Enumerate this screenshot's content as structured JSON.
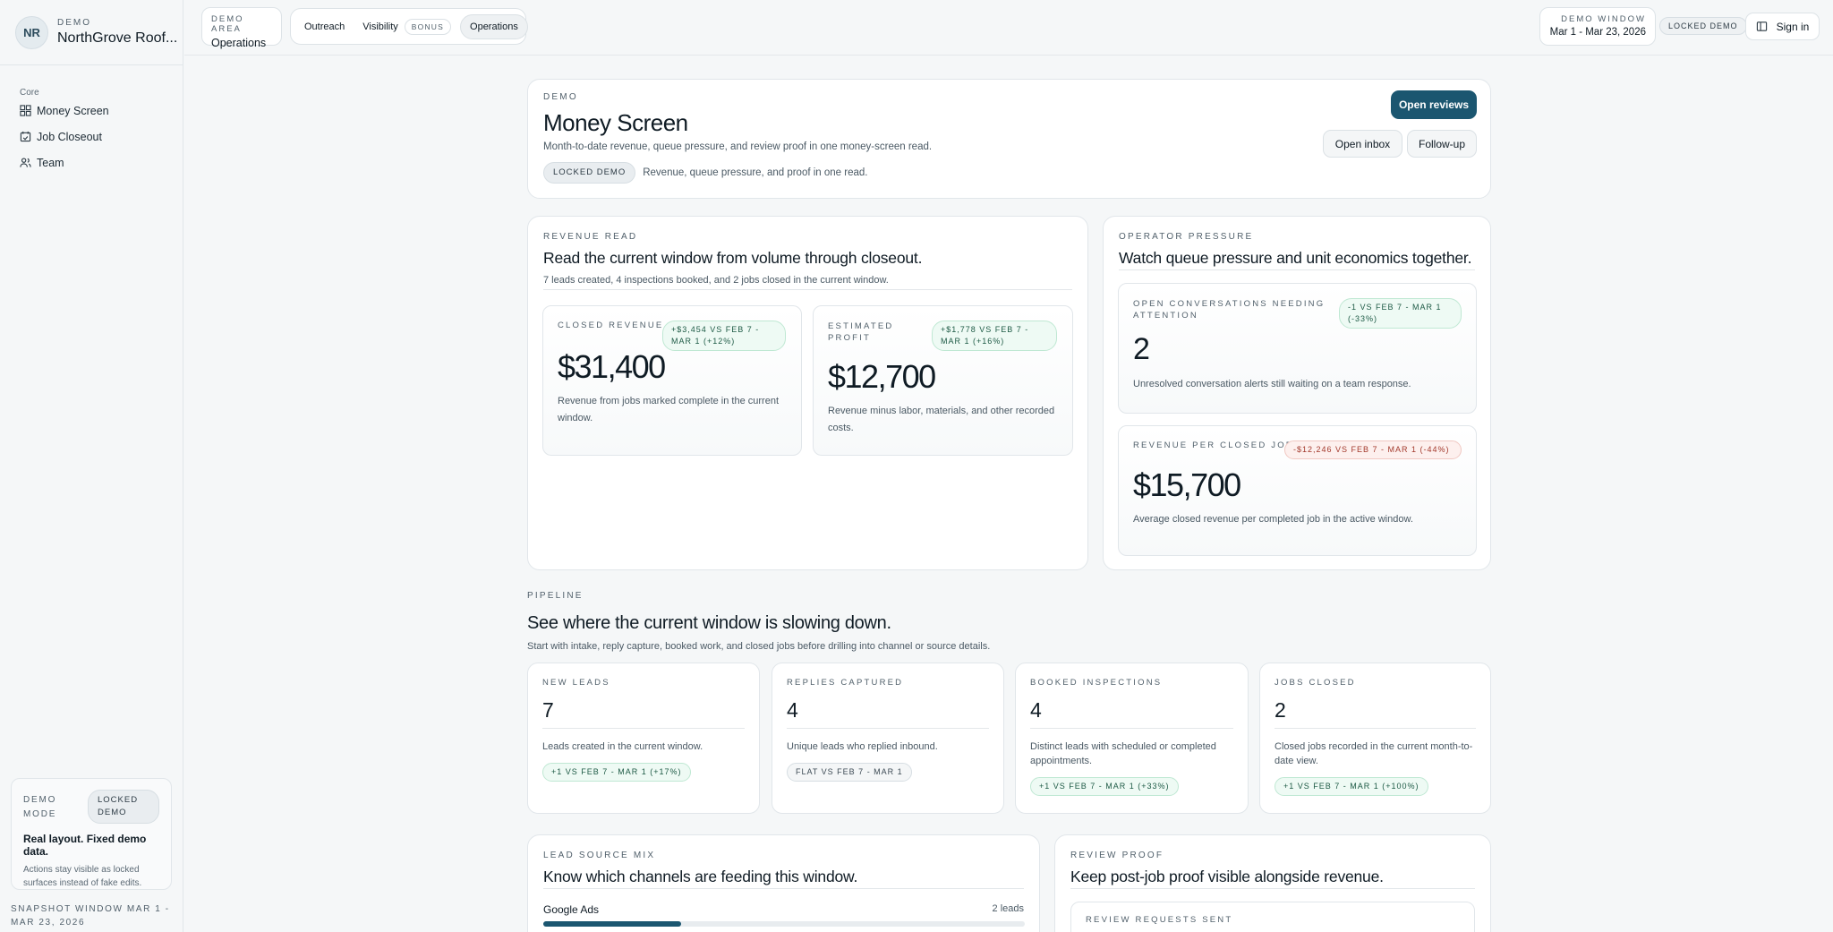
{
  "sidebar": {
    "avatar": "NR",
    "eyebrow": "DEMO",
    "company": "NorthGrove Roof...",
    "section": "Core",
    "items": [
      {
        "label": "Money Screen",
        "icon": "grid-icon"
      },
      {
        "label": "Job Closeout",
        "icon": "calendar-check-icon"
      },
      {
        "label": "Team",
        "icon": "users-icon"
      }
    ],
    "demo_mode": {
      "label": "DEMO MODE",
      "badge": "LOCKED DEMO",
      "title": "Real layout. Fixed demo data.",
      "subtitle": "Actions stay visible as locked surfaces instead of fake edits."
    },
    "snapshot": "SNAPSHOT WINDOW MAR 1 - MAR 23, 2026"
  },
  "topbar": {
    "area_eyebrow": "DEMO AREA",
    "area_name": "Operations",
    "tabs": [
      {
        "label": "Outreach"
      },
      {
        "label": "Visibility",
        "badge": "BONUS"
      },
      {
        "label": "Operations"
      }
    ],
    "window_eyebrow": "DEMO WINDOW",
    "window_range": "Mar 1 - Mar 23, 2026",
    "locked_badge": "LOCKED DEMO",
    "signin": "Sign in"
  },
  "hero": {
    "eyebrow": "DEMO",
    "title": "Money Screen",
    "subtitle": "Month-to-date revenue, queue pressure, and review proof in one money-screen read.",
    "badge": "LOCKED DEMO",
    "badge_note": "Revenue, queue pressure, and proof in one read.",
    "btn_reviews": "Open reviews",
    "btn_inbox": "Open inbox",
    "btn_followup": "Follow-up"
  },
  "revenue": {
    "eyebrow": "REVENUE READ",
    "title": "Read the current window from volume through closeout.",
    "subtitle": "7 leads created, 4 inspections booked, and 2 jobs closed in the current window.",
    "closed": {
      "label": "CLOSED REVENUE",
      "delta": "+$3,454 VS FEB 7 - MAR 1 (+12%)",
      "value": "$31,400",
      "desc": "Revenue from jobs marked complete in the current window."
    },
    "profit": {
      "label": "ESTIMATED PROFIT",
      "delta": "+$1,778 VS FEB 7 - MAR 1 (+16%)",
      "value": "$12,700",
      "desc": "Revenue minus labor, materials, and other recorded costs."
    }
  },
  "operator": {
    "eyebrow": "OPERATOR PRESSURE",
    "title": "Watch queue pressure and unit economics together.",
    "open": {
      "label": "OPEN CONVERSATIONS NEEDING ATTENTION",
      "delta": "-1 VS FEB 7 - MAR 1 (-33%)",
      "value": "2",
      "desc": "Unresolved conversation alerts still waiting on a team response."
    },
    "rpj": {
      "label": "REVENUE PER CLOSED JOB",
      "delta": "-$12,246 VS FEB 7 - MAR 1 (-44%)",
      "value": "$15,700",
      "desc": "Average closed revenue per completed job in the active window."
    }
  },
  "pipeline": {
    "eyebrow": "PIPELINE",
    "title": "See where the current window is slowing down.",
    "subtitle": "Start with intake, reply capture, booked work, and closed jobs before drilling into channel or source details.",
    "cards": [
      {
        "label": "NEW LEADS",
        "value": "7",
        "desc": "Leads created in the current window.",
        "delta": "+1 VS FEB 7 - MAR 1 (+17%)"
      },
      {
        "label": "REPLIES CAPTURED",
        "value": "4",
        "desc": "Unique leads who replied inbound.",
        "delta": "FLAT VS FEB 7 - MAR 1"
      },
      {
        "label": "BOOKED INSPECTIONS",
        "value": "4",
        "desc": "Distinct leads with scheduled or completed appointments.",
        "delta": "+1 VS FEB 7 - MAR 1 (+33%)"
      },
      {
        "label": "JOBS CLOSED",
        "value": "2",
        "desc": "Closed jobs recorded in the current month-to-date view.",
        "delta": "+1 VS FEB 7 - MAR 1 (+100%)"
      }
    ]
  },
  "lead_mix": {
    "eyebrow": "LEAD SOURCE MIX",
    "title": "Know which channels are feeding this window.",
    "rows": [
      {
        "label": "Google Ads",
        "count": "2 leads",
        "share": 0.286
      }
    ]
  },
  "review_proof": {
    "eyebrow": "REVIEW PROOF",
    "title": "Keep post-job proof visible alongside revenue.",
    "inner_label": "REVIEW REQUESTS SENT"
  },
  "colors": {
    "accent": "#1b5670",
    "green_bg": "#eefaf4",
    "red_bg": "#fdf0ee"
  }
}
